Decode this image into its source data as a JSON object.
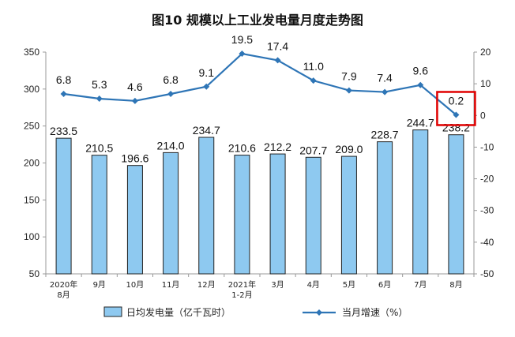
{
  "chart_data": {
    "type": "bar+line",
    "title": "图10 规模以上工业发电量月度走势图",
    "categories": [
      [
        "2020年",
        "8月"
      ],
      [
        "9月"
      ],
      [
        "10月"
      ],
      [
        "11月"
      ],
      [
        "12月"
      ],
      [
        "2021年",
        "1-2月"
      ],
      [
        "3月"
      ],
      [
        "4月"
      ],
      [
        "5月"
      ],
      [
        "6月"
      ],
      [
        "7月"
      ],
      [
        "8月"
      ]
    ],
    "series": [
      {
        "name": "日均发电量（亿千瓦时）",
        "type": "bar",
        "axis": "left",
        "values": [
          233.5,
          210.5,
          196.6,
          214.0,
          234.7,
          210.6,
          212.2,
          207.7,
          209.0,
          228.7,
          244.7,
          238.2
        ],
        "labels": [
          "233.5",
          "210.5",
          "196.6",
          "214.0",
          "234.7",
          "210.6",
          "212.2",
          "207.7",
          "209.0",
          "228.7",
          "244.7",
          "238.2"
        ],
        "color": "#8ec9f0"
      },
      {
        "name": "当月增速（%）",
        "type": "line",
        "axis": "right",
        "values": [
          6.8,
          5.3,
          4.6,
          6.8,
          9.1,
          19.5,
          17.4,
          11.0,
          7.9,
          7.4,
          9.6,
          0.2
        ],
        "labels": [
          "6.8",
          "5.3",
          "4.6",
          "6.8",
          "9.1",
          "19.5",
          "17.4",
          "11.0",
          "7.9",
          "7.4",
          "9.6",
          "0.2"
        ],
        "color": "#2e75b6"
      }
    ],
    "y_left": {
      "min": 50,
      "max": 350,
      "ticks": [
        50,
        100,
        150,
        200,
        250,
        300,
        350
      ]
    },
    "y_right": {
      "min": -50,
      "max": 20,
      "ticks": [
        -50,
        -40,
        -30,
        -20,
        -10,
        0,
        10,
        20
      ]
    },
    "grid": false,
    "legend": "bottom",
    "highlight": {
      "category_index": 11,
      "color": "#e00000"
    }
  }
}
